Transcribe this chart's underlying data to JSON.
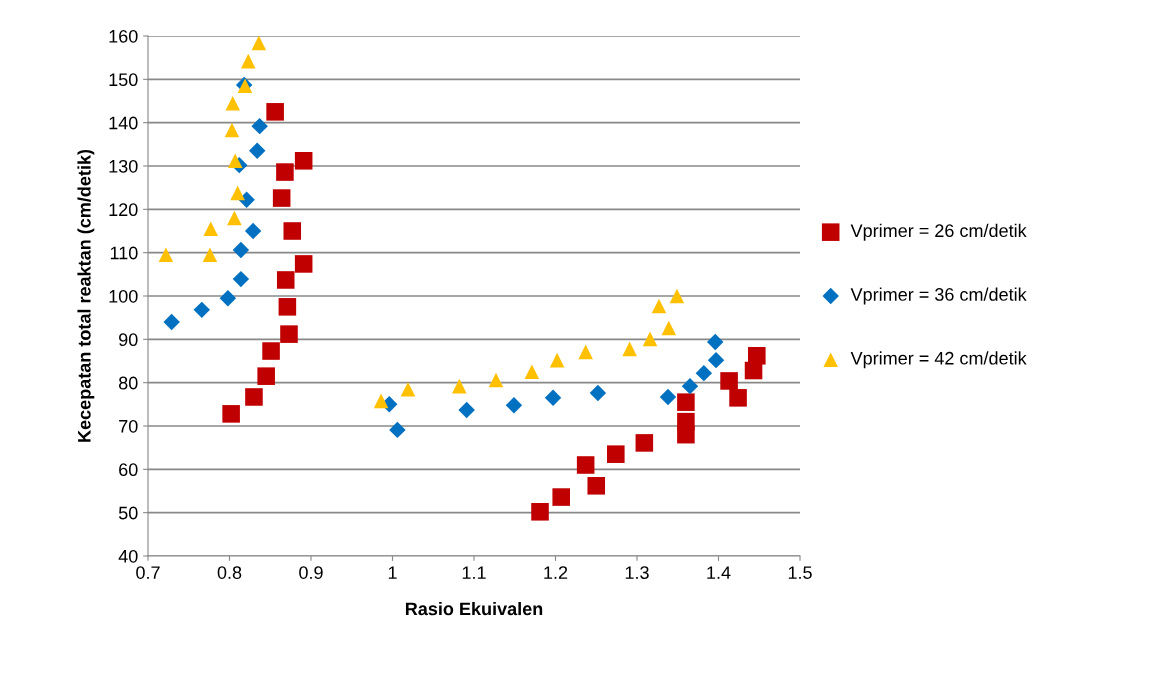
{
  "chart_data": {
    "type": "scatter",
    "xlabel": "Rasio Ekuivalen",
    "ylabel": "Kecepatan total reaktan (cm/detik)",
    "xlim": [
      0.7,
      1.5
    ],
    "xticks": [
      0.7,
      0.8,
      0.9,
      1,
      1.1,
      1.2,
      1.3,
      1.4,
      1.5
    ],
    "ylim": [
      40,
      160
    ],
    "yticks": [
      40,
      50,
      60,
      70,
      80,
      90,
      100,
      110,
      120,
      130,
      140,
      150,
      160
    ],
    "grid": "y",
    "legend": "right",
    "series": [
      {
        "name": "Vprimer = 26 cm/detik",
        "color": "#c00000",
        "marker": "square",
        "x": [
          0.856,
          0.891,
          0.868,
          0.864,
          0.877,
          0.869,
          0.891,
          0.871,
          0.873,
          0.851,
          0.845,
          0.83,
          0.802,
          1.181,
          1.207,
          1.25,
          1.237,
          1.274,
          1.309,
          1.36,
          1.36,
          1.36,
          1.413,
          1.424,
          1.443,
          1.447
        ],
        "values": [
          142.5,
          131.2,
          128.6,
          122.6,
          115,
          103.7,
          107.4,
          97.5,
          91.2,
          87.3,
          81.5,
          76.7,
          72.8,
          50.2,
          53.6,
          56.2,
          61,
          63.5,
          66.1,
          68,
          71,
          75.5,
          80.4,
          76.5,
          82.8,
          86.2
        ]
      },
      {
        "name": "Vprimer = 36 cm/detik",
        "color": "#0070c0",
        "marker": "diamond",
        "x": [
          0.729,
          0.766,
          0.798,
          0.814,
          0.814,
          0.829,
          0.821,
          0.812,
          0.834,
          0.837,
          0.818,
          0.996,
          1.006,
          1.091,
          1.149,
          1.197,
          1.252,
          1.338,
          1.365,
          1.382,
          1.397,
          1.396
        ],
        "values": [
          94,
          96.8,
          99.5,
          103.9,
          110.6,
          115,
          122.2,
          130.2,
          133.5,
          139.2,
          148.7,
          75,
          69.1,
          73.7,
          74.8,
          76.5,
          77.6,
          76.7,
          79.2,
          82.2,
          85.2,
          89.4
        ]
      },
      {
        "name": "Vprimer = 42 cm/detik",
        "color": "#ffc000",
        "marker": "triangle",
        "x": [
          0.722,
          0.776,
          0.777,
          0.806,
          0.81,
          0.807,
          0.803,
          0.804,
          0.819,
          0.823,
          0.836,
          0.986,
          1.019,
          1.082,
          1.127,
          1.171,
          1.202,
          1.237,
          1.291,
          1.316,
          1.339,
          1.327,
          1.349
        ],
        "values": [
          109.5,
          109.5,
          115.5,
          118,
          123.8,
          131.2,
          138.3,
          144.5,
          148.5,
          154.2,
          158.4,
          75.8,
          78.5,
          79.2,
          80.6,
          82.5,
          85.2,
          87.1,
          87.8,
          90.1,
          92.6,
          97.7,
          100
        ]
      }
    ]
  }
}
